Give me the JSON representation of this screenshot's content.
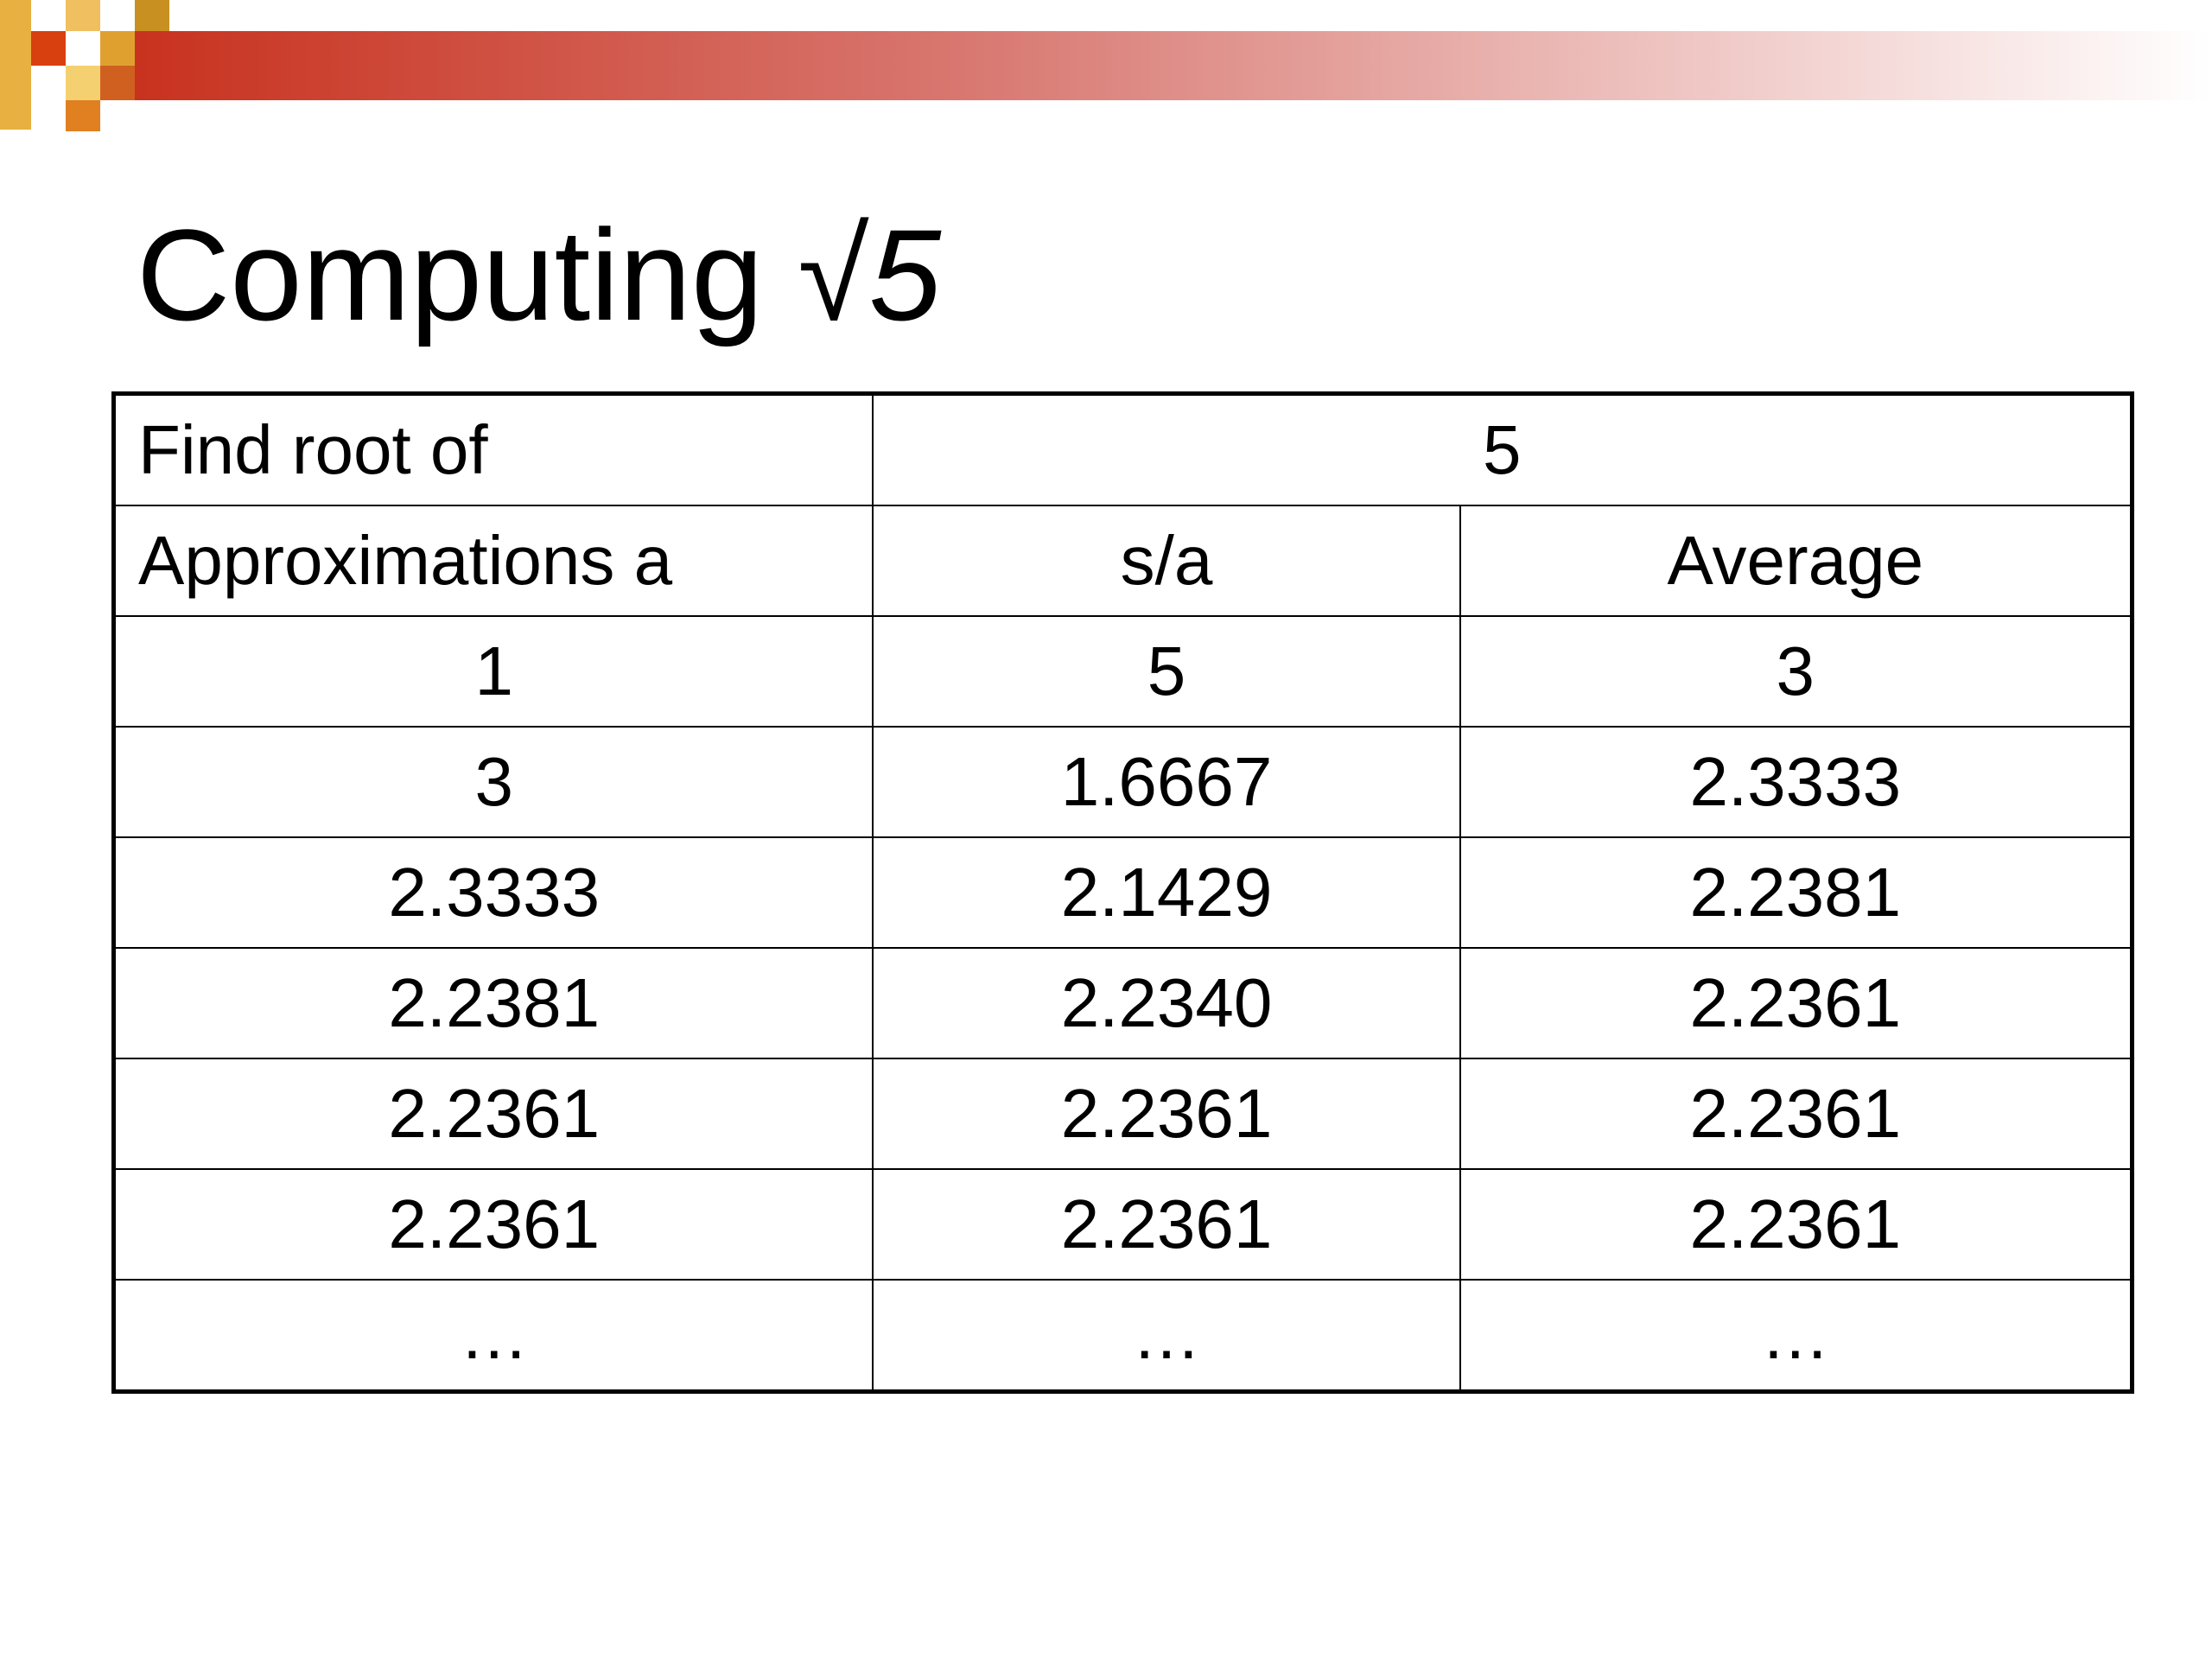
{
  "title": {
    "text": "Computing",
    "math": "√5"
  },
  "table": {
    "rows": [
      [
        "Find root of",
        "5"
      ],
      [
        "Approximations a",
        "s/a",
        "Average"
      ],
      [
        "1",
        "5",
        "3"
      ],
      [
        "3",
        "1.6667",
        "2.3333"
      ],
      [
        "2.3333",
        "2.1429",
        "2.2381"
      ],
      [
        "2.2381",
        "2.2340",
        "2.2361"
      ],
      [
        "2.2361",
        "2.2361",
        "2.2361"
      ],
      [
        "2.2361",
        "2.2361",
        "2.2361"
      ],
      [
        "…",
        "…",
        "…"
      ]
    ]
  }
}
